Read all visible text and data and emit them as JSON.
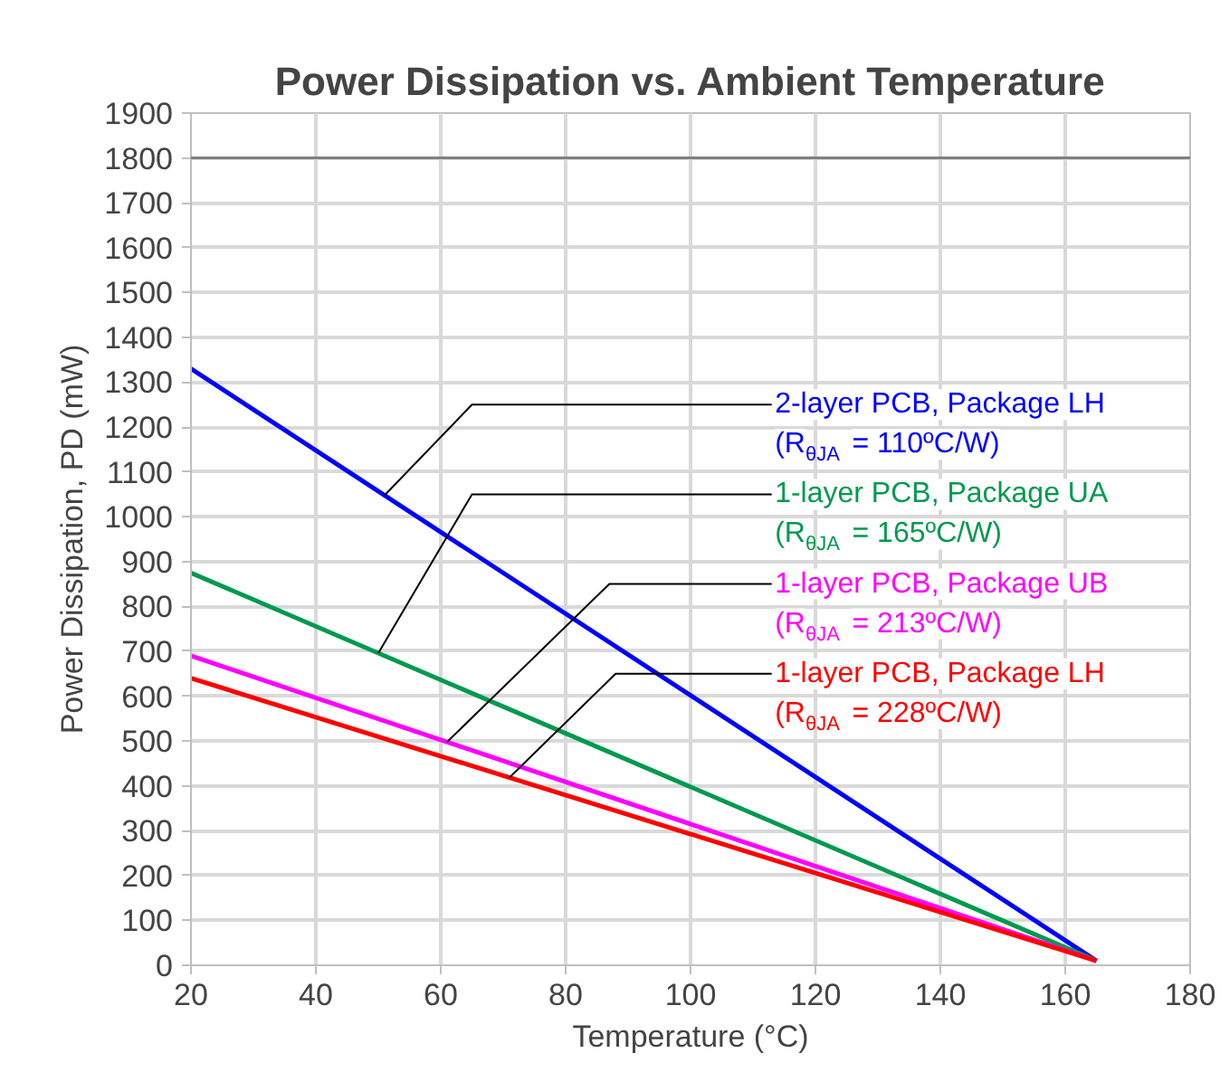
{
  "chart_data": {
    "type": "line",
    "title": "Power Dissipation vs. Ambient Temperature",
    "xlabel": "Temperature (°C)",
    "ylabel": "Power Dissipation, PD (mW)",
    "x": [
      20,
      165
    ],
    "series": [
      {
        "name": "2-layer PCB, Package LH\n(R$_{θJA}$ = 110ºC/W)",
        "color": "#0000ff",
        "values": [
          1330,
          10
        ]
      },
      {
        "name": "1-layer PCB, Package UA\n(R$_{θJA}$ = 165ºC/W)",
        "color": "#009a4e",
        "values": [
          875,
          10
        ]
      },
      {
        "name": "1-layer PCB, Package UB\n(R$_{θJA}$ = 213ºC/W)",
        "color": "#ff00ff",
        "values": [
          690,
          10
        ]
      },
      {
        "name": "1-layer PCB, Package LH\n(R$_{θJA}$ = 228ºC/W)",
        "color": "#ff0000",
        "values": [
          640,
          10
        ]
      }
    ],
    "xlim": [
      20,
      180
    ],
    "xticks": [
      20,
      40,
      60,
      80,
      100,
      120,
      140,
      160,
      180
    ],
    "ylim": [
      0,
      1900
    ],
    "yticks": [
      0,
      100,
      200,
      300,
      400,
      500,
      600,
      700,
      800,
      900,
      1000,
      1100,
      1200,
      1300,
      1400,
      1500,
      1600,
      1700,
      1800,
      1900
    ],
    "ref_lines": [
      {
        "axis": "y",
        "value": 1800,
        "color": "#808080"
      }
    ],
    "grid": true,
    "legend": false,
    "marker": "none",
    "line_style": "solid"
  }
}
